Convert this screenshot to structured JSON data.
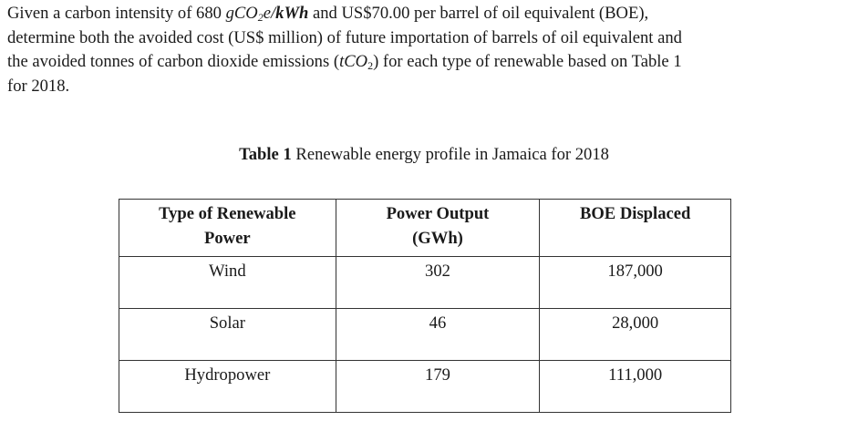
{
  "paragraph": {
    "line1": {
      "a": "Given a carbon intensity of 680 ",
      "unit_a": "gCO",
      "unit_sub": "2",
      "unit_b": "e/",
      "unit_c": "kWh",
      "b": " and US$70.00 per barrel of oil equivalent (BOE),"
    },
    "line2": "determine both the avoided cost (US$ million) of future importation of barrels of oil equivalent and",
    "line3": {
      "a": "the avoided tonnes of carbon dioxide emissions (",
      "unit": "tCO",
      "unit_sub": "2",
      "b": ") for each type of renewable based on Table 1"
    },
    "line4": "for 2018."
  },
  "caption": {
    "label": "Table 1",
    "text": " Renewable energy profile in Jamaica for 2018"
  },
  "table": {
    "headers": [
      {
        "line1": "Type of Renewable",
        "line2": "Power"
      },
      {
        "line1": "Power Output",
        "line2": "(GWh)"
      },
      {
        "line1": "BOE Displaced",
        "line2": ""
      }
    ],
    "rows": [
      [
        "Wind",
        "302",
        "187,000"
      ],
      [
        "Solar",
        "46",
        "28,000"
      ],
      [
        "Hydropower",
        "179",
        "111,000"
      ]
    ]
  }
}
